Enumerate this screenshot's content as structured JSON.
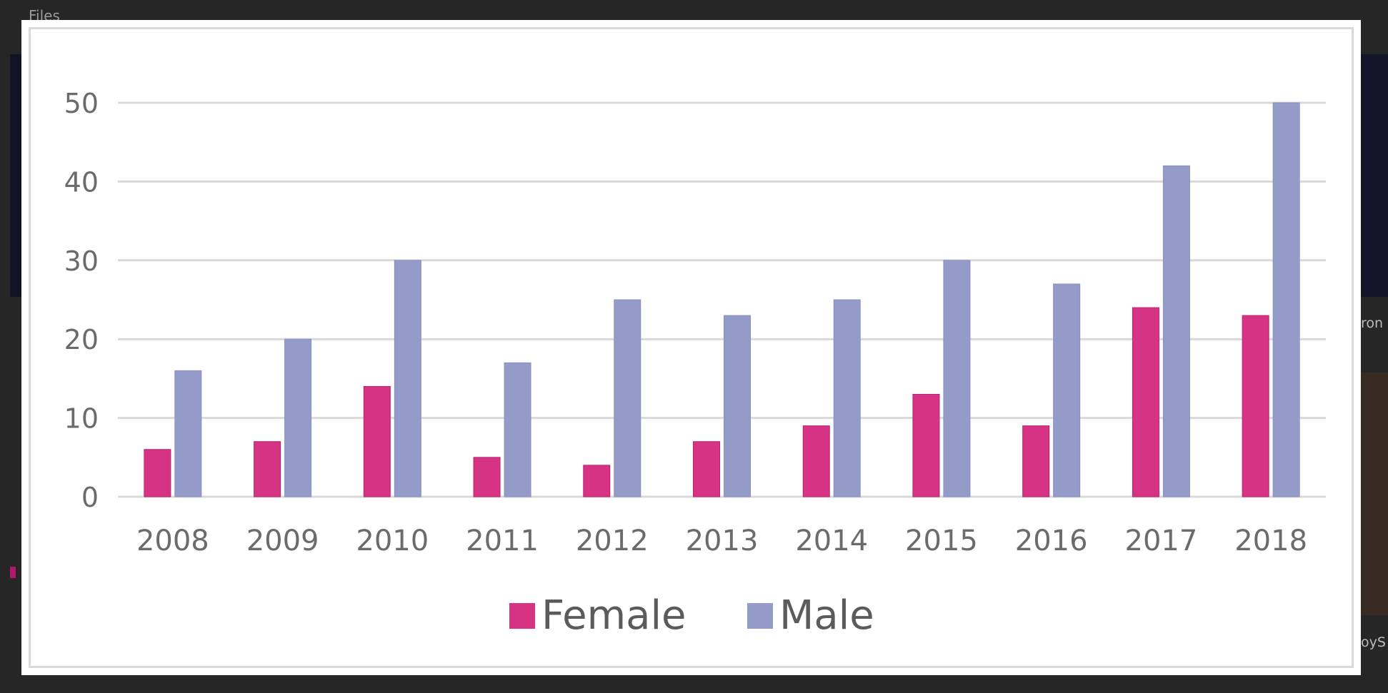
{
  "background": {
    "header_text": "Files",
    "right_snippet_1": "ron",
    "right_snippet_2": "oyS"
  },
  "chart_data": {
    "type": "bar",
    "title": "",
    "xlabel": "",
    "ylabel": "",
    "categories": [
      "2008",
      "2009",
      "2010",
      "2011",
      "2012",
      "2013",
      "2014",
      "2015",
      "2016",
      "2017",
      "2018"
    ],
    "series": [
      {
        "name": "Female",
        "color": "#d63384",
        "values": [
          6,
          7,
          14,
          5,
          4,
          7,
          9,
          13,
          9,
          24,
          23
        ]
      },
      {
        "name": "Male",
        "color": "#949bc9",
        "values": [
          16,
          20,
          30,
          17,
          25,
          23,
          25,
          30,
          27,
          42,
          50
        ]
      }
    ],
    "ylim": [
      0,
      50
    ],
    "yticks": [
      "0",
      "10",
      "20",
      "30",
      "40",
      "50"
    ],
    "grid": true,
    "legend_position": "bottom"
  }
}
